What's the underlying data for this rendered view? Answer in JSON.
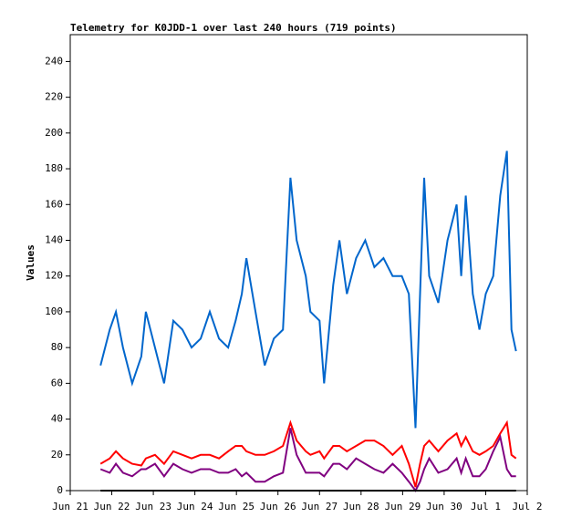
{
  "chart_data": {
    "type": "line",
    "title": "Telemetry for K0JDD-1 over last 240 hours (719 points)",
    "y_label": "Values",
    "x": [
      0.73,
      0.95,
      1.1,
      1.27,
      1.49,
      1.71,
      1.82,
      2.04,
      2.26,
      2.48,
      2.7,
      2.92,
      3.14,
      3.36,
      3.58,
      3.8,
      3.98,
      4.13,
      4.24,
      4.46,
      4.68,
      4.9,
      5.12,
      5.3,
      5.45,
      5.67,
      5.78,
      6.0,
      6.11,
      6.33,
      6.48,
      6.66,
      6.88,
      7.1,
      7.32,
      7.54,
      7.76,
      7.98,
      8.15,
      8.31,
      8.42,
      8.52,
      8.64,
      8.86,
      9.08,
      9.3,
      9.41,
      9.52,
      9.69,
      9.85,
      10.0,
      10.18,
      10.35,
      10.51,
      10.62,
      10.73
    ],
    "series": [
      {
        "color": "#0066cc",
        "values": [
          70,
          90,
          100,
          80,
          60,
          75,
          100,
          80,
          60,
          95,
          90,
          80,
          85,
          100,
          85,
          80,
          95,
          110,
          130,
          100,
          70,
          85,
          90,
          175,
          140,
          120,
          100,
          95,
          60,
          115,
          140,
          110,
          130,
          140,
          125,
          130,
          120,
          120,
          110,
          35,
          110,
          175,
          120,
          105,
          140,
          160,
          120,
          165,
          110,
          90,
          110,
          120,
          165,
          190,
          90,
          78
        ]
      },
      {
        "color": "#ff0000",
        "values": [
          15,
          18,
          22,
          18,
          15,
          14,
          18,
          20,
          15,
          22,
          20,
          18,
          20,
          20,
          18,
          22,
          25,
          25,
          22,
          20,
          20,
          22,
          25,
          38,
          28,
          22,
          20,
          22,
          18,
          25,
          25,
          22,
          25,
          28,
          28,
          25,
          20,
          25,
          15,
          2,
          15,
          25,
          28,
          22,
          28,
          32,
          25,
          30,
          22,
          20,
          22,
          25,
          32,
          38,
          20,
          18
        ]
      },
      {
        "color": "#800080",
        "values": [
          12,
          10,
          15,
          10,
          8,
          12,
          12,
          15,
          8,
          15,
          12,
          10,
          12,
          12,
          10,
          10,
          12,
          8,
          10,
          5,
          5,
          8,
          10,
          35,
          20,
          10,
          10,
          10,
          8,
          15,
          15,
          12,
          18,
          15,
          12,
          10,
          15,
          10,
          5,
          0,
          5,
          12,
          18,
          10,
          12,
          18,
          10,
          18,
          8,
          8,
          12,
          22,
          30,
          12,
          8,
          8
        ]
      },
      {
        "color": "#000000",
        "values": [
          0,
          0,
          0,
          0,
          0,
          0,
          0,
          0,
          0,
          0,
          0,
          0,
          0,
          0,
          0,
          0,
          0,
          0,
          0,
          0,
          0,
          0,
          0,
          0,
          0,
          0,
          0,
          0,
          0,
          0,
          0,
          0,
          0,
          0,
          0,
          0,
          0,
          0,
          0,
          0,
          0,
          0,
          0,
          0,
          0,
          0,
          0,
          0,
          0,
          0,
          0,
          0,
          0,
          0,
          0,
          0
        ]
      }
    ],
    "xlim": [
      0,
      11
    ],
    "xticks": [
      {
        "value": 0,
        "label": "Jun 21"
      },
      {
        "value": 1,
        "label": "Jun 22"
      },
      {
        "value": 2,
        "label": "Jun 23"
      },
      {
        "value": 3,
        "label": "Jun 24"
      },
      {
        "value": 4,
        "label": "Jun 25"
      },
      {
        "value": 5,
        "label": "Jun 26"
      },
      {
        "value": 6,
        "label": "Jun 27"
      },
      {
        "value": 7,
        "label": "Jun 28"
      },
      {
        "value": 8,
        "label": "Jun 29"
      },
      {
        "value": 9,
        "label": "Jun 30"
      },
      {
        "value": 10,
        "label": "Jul 1"
      },
      {
        "value": 11,
        "label": "Jul 2"
      }
    ],
    "ylim": [
      0,
      255
    ],
    "yticks": [
      0,
      20,
      40,
      60,
      80,
      100,
      120,
      140,
      160,
      180,
      200,
      220,
      240
    ]
  }
}
